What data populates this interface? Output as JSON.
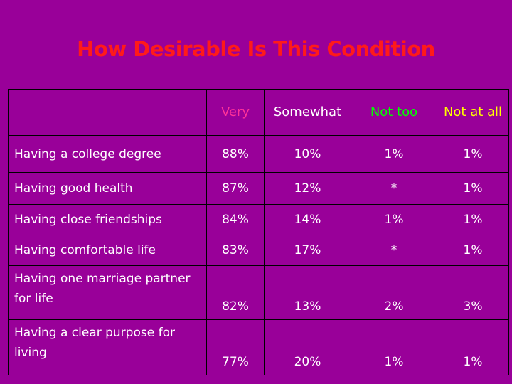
{
  "title": "How Desirable Is This Condition",
  "table": {
    "columns": [
      "",
      "Very",
      "Somewhat",
      "Not too",
      "Not at all"
    ],
    "rows": [
      {
        "label": "Having a college degree",
        "values": [
          "88%",
          "10%",
          "1%",
          "1%"
        ]
      },
      {
        "label": "Having good health",
        "values": [
          "87%",
          "12%",
          "*",
          "1%"
        ]
      },
      {
        "label": "Having close friendships",
        "values": [
          "84%",
          "14%",
          "1%",
          "1%"
        ]
      },
      {
        "label": "Having comfortable life",
        "values": [
          "83%",
          "17%",
          "*",
          "1%"
        ]
      },
      {
        "label": "Having one marriage partner for life",
        "values": [
          "82%",
          "13%",
          "2%",
          "3%"
        ]
      },
      {
        "label": "Having a clear purpose for living",
        "values": [
          "77%",
          "20%",
          "1%",
          "1%"
        ]
      }
    ]
  },
  "colors": {
    "background": "#990099",
    "title": "#ff1a1a",
    "header_very": "#ff3399",
    "header_somewhat": "#ffffff",
    "header_not_too": "#00ff00",
    "header_not_at_all": "#ffff00",
    "cell_text": "#ffffff"
  }
}
